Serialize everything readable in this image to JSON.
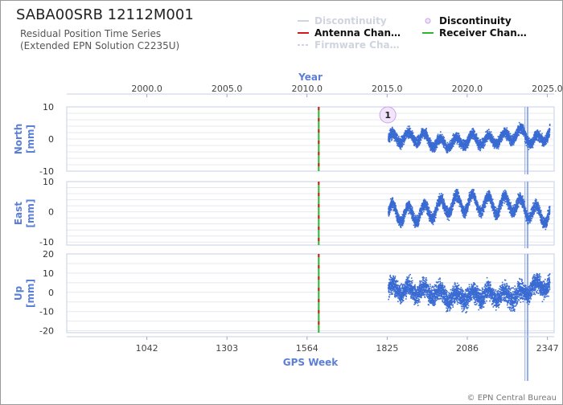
{
  "header": {
    "title": "SABA00SRB 12112M001",
    "subtitle_line1": "Residual Position Time Series",
    "subtitle_line2": "(Extended EPN Solution C2235U)",
    "credit": "© EPN Central Bureau"
  },
  "legend": [
    {
      "label": "Discontinuity",
      "style": "line",
      "color": "#d0d4de",
      "active": false
    },
    {
      "label": "Discontinuity",
      "style": "circle",
      "color": "#c9a6e6",
      "active": true
    },
    {
      "label": "Antenna Chan…",
      "style": "line",
      "color": "#d11a1a",
      "active": true
    },
    {
      "label": "Receiver Chan…",
      "style": "line",
      "color": "#2fb52f",
      "active": true
    },
    {
      "label": "Firmware Cha…",
      "style": "dashed",
      "color": "#d0d4de",
      "active": false
    }
  ],
  "colors": {
    "axis": "#5c7fd6",
    "series": "#3a6bd3",
    "grid": "#e6e8ee",
    "marker": "#c9a6e6",
    "antenna": "#d11a1a",
    "receiver": "#2fb52f"
  },
  "chart_data": {
    "type": "scatter",
    "x_top_axis": {
      "label": "Year",
      "ticks": [
        "2000.0",
        "2005.0",
        "2010.0",
        "2015.0",
        "2020.0",
        "2025.0"
      ],
      "tick_values": [
        2000.0,
        2005.0,
        2010.0,
        2015.0,
        2020.0,
        2025.0
      ]
    },
    "x_bottom_axis": {
      "label": "GPS Week",
      "ticks": [
        "1042",
        "1303",
        "1564",
        "1825",
        "2086",
        "2347"
      ],
      "tick_values": [
        1042,
        1303,
        1564,
        1825,
        2086,
        2347
      ],
      "range": [
        781,
        2369
      ]
    },
    "equipment_change_week": 1602,
    "discontinuity_marker": {
      "label": "1",
      "week": 1827
    },
    "data_range_weeks": [
      1829,
      2355
    ],
    "vertical_event_weeks": [
      2274,
      2281,
      2284
    ],
    "panels": [
      {
        "name": "north",
        "ylabel_line1": "North",
        "ylabel_line2": "[mm]",
        "yticks": [
          "10",
          "0",
          "-10"
        ],
        "ytick_values": [
          10,
          0,
          -10
        ],
        "ylim": [
          -10,
          10
        ],
        "trend": [
          [
            1829,
            0
          ],
          [
            1880,
            0.5
          ],
          [
            1940,
            0.5
          ],
          [
            1990,
            -1.5
          ],
          [
            2060,
            -1
          ],
          [
            2100,
            0
          ],
          [
            2160,
            -0.5
          ],
          [
            2230,
            1
          ],
          [
            2270,
            2
          ],
          [
            2300,
            -1
          ],
          [
            2355,
            2
          ]
        ]
      },
      {
        "name": "east",
        "ylabel_line1": "East",
        "ylabel_line2": "[mm]",
        "yticks": [
          "10",
          "0",
          "-10"
        ],
        "ytick_values": [
          10,
          0,
          -10
        ],
        "ylim": [
          -11,
          10
        ],
        "trend": [
          [
            1829,
            0
          ],
          [
            1900,
            -1
          ],
          [
            1960,
            0
          ],
          [
            2020,
            2
          ],
          [
            2070,
            3
          ],
          [
            2120,
            3
          ],
          [
            2180,
            2
          ],
          [
            2230,
            3
          ],
          [
            2275,
            1
          ],
          [
            2320,
            -1
          ],
          [
            2355,
            -1
          ]
        ]
      },
      {
        "name": "up",
        "ylabel_line1": "Up",
        "ylabel_line2": "[mm]",
        "yticks": [
          "20",
          "10",
          "0",
          "-10",
          "-20"
        ],
        "ytick_values": [
          20,
          10,
          0,
          -10,
          -20
        ],
        "ylim": [
          -21,
          20
        ],
        "trend": [
          [
            1829,
            2
          ],
          [
            1900,
            1
          ],
          [
            1980,
            0
          ],
          [
            2040,
            -3
          ],
          [
            2086,
            -2
          ],
          [
            2150,
            -1
          ],
          [
            2200,
            -2
          ],
          [
            2260,
            -1
          ],
          [
            2300,
            3
          ],
          [
            2355,
            4
          ]
        ]
      }
    ]
  }
}
